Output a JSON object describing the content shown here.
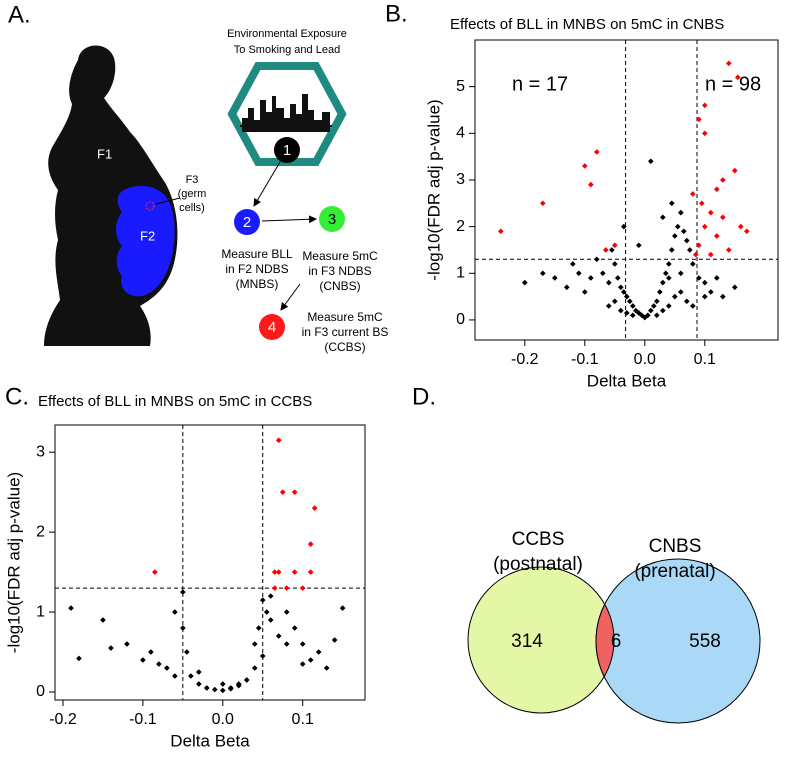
{
  "panel_a": {
    "label": "A.",
    "exposure_title": [
      "Environmental Exposure",
      "To Smoking and Lead"
    ],
    "generations": {
      "f1": "F1",
      "f2": "F2",
      "f3": [
        "F3",
        "(germ",
        "cells)"
      ]
    },
    "steps": [
      {
        "number": "1",
        "color": "#000000"
      },
      {
        "number": "2",
        "color": "#1a1aff",
        "text": [
          "Measure BLL",
          "in  F2  NDBS",
          "(MNBS)"
        ]
      },
      {
        "number": "3",
        "color": "#33ee33",
        "text": [
          "Measure 5mC",
          "in  F3  NDBS",
          "(CNBS)"
        ]
      },
      {
        "number": "4",
        "color": "#ff1a1a",
        "text": [
          "Measure 5mC",
          "in F3  current BS",
          "(CCBS)"
        ]
      }
    ]
  },
  "chart_data": [
    {
      "type": "scatter",
      "panel_label": "B.",
      "title": "Effects of BLL in MNBS on 5mC in CNBS",
      "xlabel": "Delta Beta",
      "ylabel": "-log10(FDR adj p-value)",
      "annotations": [
        "n = 17",
        "n = 98"
      ],
      "xlim": [
        -0.283,
        0.222
      ],
      "ylim": [
        -0.43,
        6
      ],
      "xticks": [
        -0.2,
        -0.1,
        {
          "value": 0,
          "label": "0.0"
        },
        0.1
      ],
      "yticks": [
        0,
        1,
        2,
        3,
        4,
        5
      ],
      "thresholds": {
        "x": [
          -0.032,
          0.087
        ],
        "y": 1.3
      },
      "series": [
        {
          "color": "#000000",
          "x": [
            -0.2,
            -0.17,
            -0.15,
            -0.13,
            -0.12,
            -0.11,
            -0.1,
            -0.09,
            -0.08,
            -0.07,
            -0.06,
            -0.055,
            -0.05,
            -0.045,
            -0.04,
            -0.035,
            -0.03,
            -0.025,
            -0.02,
            -0.015,
            -0.01,
            -0.005,
            0,
            0.005,
            0.01,
            0.015,
            0.02,
            0.025,
            0.03,
            0.035,
            0.04,
            0.045,
            0.05,
            0.055,
            0.06,
            0.065,
            0.07,
            0.075,
            0.08,
            0.09,
            0.1,
            0.11,
            0.12,
            0.13,
            0.15,
            -0.06,
            -0.04,
            -0.03,
            -0.02,
            0.02,
            0.03,
            0.04,
            0.05,
            0.06,
            0.07,
            0.03,
            0.045,
            -0.035,
            0.01,
            -0.01,
            0.04,
            0.06,
            -0.05,
            0.08,
            0.1
          ],
          "values": [
            0.8,
            1.0,
            0.9,
            0.7,
            1.2,
            1.0,
            0.6,
            0.9,
            1.3,
            1.0,
            0.8,
            1.5,
            1.2,
            0.9,
            0.7,
            0.6,
            0.5,
            0.4,
            0.3,
            0.2,
            0.15,
            0.1,
            0.05,
            0.1,
            0.2,
            0.3,
            0.4,
            0.6,
            0.8,
            1.0,
            1.2,
            1.5,
            1.8,
            2.0,
            2.3,
            1.9,
            1.7,
            1.5,
            1.2,
            0.9,
            0.8,
            0.6,
            0.9,
            0.5,
            0.7,
            0.3,
            0.2,
            0.15,
            0.1,
            0.1,
            0.2,
            0.3,
            0.5,
            0.6,
            0.4,
            2.2,
            2.5,
            2.0,
            3.4,
            1.6,
            0.9,
            1.0,
            0.4,
            0.3,
            0.5
          ]
        },
        {
          "color": "#ff0000",
          "x": [
            -0.24,
            -0.17,
            -0.08,
            -0.1,
            -0.09,
            -0.05,
            -0.065,
            0.14,
            0.155,
            0.1,
            0.09,
            0.1,
            0.13,
            0.15,
            0.12,
            0.08,
            0.095,
            0.11,
            0.13,
            0.16,
            0.1,
            0.12,
            0.09,
            0.14,
            0.11,
            0.085,
            0.17
          ],
          "values": [
            1.9,
            2.5,
            3.6,
            3.3,
            2.9,
            1.6,
            1.5,
            5.5,
            5.2,
            4.6,
            4.3,
            4.0,
            3.0,
            3.2,
            2.8,
            2.7,
            2.5,
            2.3,
            2.2,
            2.0,
            2.0,
            1.8,
            1.6,
            1.5,
            1.4,
            1.4,
            1.9
          ]
        }
      ]
    },
    {
      "type": "scatter",
      "panel_label": "C.",
      "title": "Effects of BLL in MNBS on 5mC in CCBS",
      "xlabel": "Delta Beta",
      "ylabel": "-log10(FDR adj p-value)",
      "xlim": [
        -0.21,
        0.178
      ],
      "ylim": [
        -0.1,
        3.34
      ],
      "xticks": [
        -0.2,
        -0.1,
        {
          "value": 0,
          "label": "0.0"
        },
        0.1
      ],
      "yticks": [
        0,
        1,
        2,
        3
      ],
      "thresholds": {
        "x": [
          -0.05,
          0.05
        ],
        "y": 1.3
      },
      "series": [
        {
          "color": "#000000",
          "x": [
            -0.19,
            -0.18,
            -0.15,
            -0.14,
            -0.12,
            -0.1,
            -0.09,
            -0.08,
            -0.07,
            -0.06,
            -0.05,
            -0.045,
            -0.04,
            -0.03,
            -0.02,
            -0.01,
            0,
            0.01,
            0.02,
            0.03,
            0.04,
            0.045,
            0.05,
            0.055,
            0.06,
            0.07,
            0.08,
            0.09,
            0.1,
            0.11,
            0.12,
            0.13,
            0.14,
            0.15,
            -0.05,
            -0.03,
            0.02,
            0.04,
            0.06,
            0.08,
            0.1,
            0.05,
            -0.06,
            0.0,
            0.01
          ],
          "values": [
            1.05,
            0.42,
            0.9,
            0.55,
            0.6,
            0.4,
            0.5,
            0.35,
            0.3,
            0.2,
            1.25,
            0.5,
            0.2,
            0.1,
            0.05,
            0.03,
            0.02,
            0.04,
            0.08,
            0.15,
            0.3,
            0.8,
            1.15,
            1.0,
            0.9,
            0.7,
            0.6,
            0.8,
            0.6,
            0.4,
            0.5,
            0.3,
            0.65,
            1.05,
            0.8,
            0.25,
            0.1,
            0.6,
            1.2,
            1.0,
            0.35,
            0.45,
            1.0,
            0.1,
            0.05
          ]
        },
        {
          "color": "#ff0000",
          "x": [
            -0.085,
            0.07,
            0.075,
            0.09,
            0.115,
            0.11,
            0.065,
            0.07,
            0.09,
            0.11,
            0.08,
            0.1,
            0.065
          ],
          "values": [
            1.5,
            3.15,
            2.5,
            2.5,
            2.3,
            1.85,
            1.5,
            1.5,
            1.5,
            1.5,
            1.3,
            1.3,
            1.3
          ]
        }
      ]
    },
    {
      "type": "venn",
      "panel_label": "D.",
      "sets": [
        {
          "label": [
            "CCBS",
            "(postnatal)"
          ],
          "color": "#e3f7a6"
        },
        {
          "label": [
            "CNBS",
            "(prenatal)"
          ],
          "color": "#a9d9f7"
        }
      ],
      "overlap_color": "#f06262",
      "values": [
        314,
        6,
        558
      ]
    }
  ]
}
